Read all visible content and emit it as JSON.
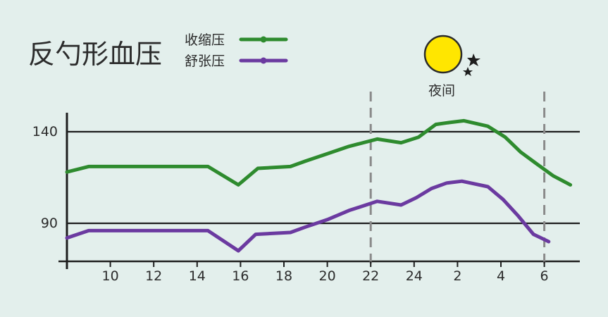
{
  "chart_data": {
    "type": "line",
    "title": "反勺形血压",
    "xlabel": "",
    "ylabel": "",
    "x_ticks": [
      "10",
      "12",
      "14",
      "16",
      "18",
      "20",
      "22",
      "24",
      "2",
      "4",
      "6"
    ],
    "y_ticks": [
      "140",
      "90"
    ],
    "ylim": [
      72,
      145
    ],
    "grid_y": [
      140,
      90
    ],
    "legend_position": "top-left",
    "night_label": "夜间",
    "night_range": [
      "22",
      "6"
    ],
    "series": [
      {
        "name": "收缩压",
        "color": "#2e8b2e",
        "x": [
          8,
          9,
          10,
          11,
          12,
          13,
          14,
          14.5,
          15.9,
          16.8,
          18.3,
          19,
          20,
          21,
          22.3,
          23.4,
          24.2,
          25,
          25.6,
          26.3,
          27.4,
          28.2,
          28.9,
          29.7,
          30.4,
          31.2
        ],
        "y": [
          118,
          121,
          121,
          121,
          121,
          121,
          121,
          121,
          111,
          120,
          121,
          124,
          128,
          132,
          136,
          134,
          137,
          144,
          145,
          146,
          143,
          137,
          129,
          122,
          116,
          111
        ]
      },
      {
        "name": "舒张压",
        "color": "#6b3aa0",
        "x": [
          8,
          9,
          10,
          11,
          12,
          13,
          14,
          14.5,
          15.9,
          16.7,
          18.3,
          19,
          20,
          21,
          22.3,
          23.4,
          24.1,
          24.8,
          25.5,
          26.2,
          27.4,
          28.1,
          28.8,
          29.5,
          30.2
        ],
        "y": [
          82,
          86,
          86,
          86,
          86,
          86,
          86,
          86,
          75,
          84,
          85,
          88,
          92,
          97,
          102,
          100,
          104,
          109,
          112,
          113,
          110,
          103,
          94,
          84,
          80
        ]
      }
    ],
    "colors": {
      "background": "#e3efec",
      "grid": "#1e1e1e",
      "night_line": "#8a8a8a",
      "moon": "#ffe600"
    }
  }
}
